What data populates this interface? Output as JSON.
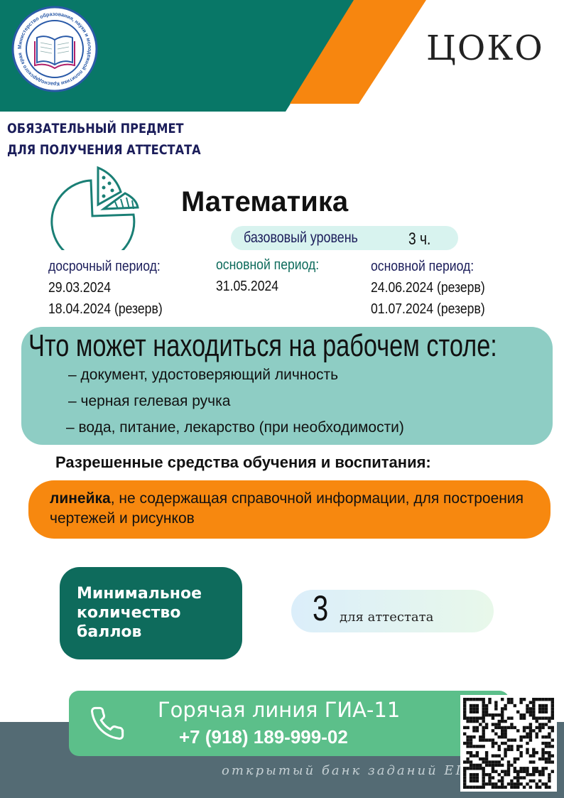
{
  "header": {
    "ministry_logo_text": "Министерство образования, науки и молодежной политики Краснодарского края",
    "tsko_logo_text": "ЦОКО",
    "colors": {
      "green": "#087767",
      "orange": "#f7860f"
    }
  },
  "heading": {
    "line1": "ОБЯЗАТЕЛЬНЫЙ ПРЕДМЕТ",
    "line2": "ДЛЯ ПОЛУЧЕНИЯ АТТЕСТАТА"
  },
  "subject": {
    "title": "Математика",
    "level": "базововый  уровень",
    "duration": "3 ч.",
    "icon": "pie-chart-icon"
  },
  "periods": [
    {
      "label": "досрочный период:",
      "dates": [
        "29.03.2024",
        "18.04.2024 (резерв)"
      ]
    },
    {
      "label": "основной период:",
      "dates": [
        "31.05.2024"
      ]
    },
    {
      "label": "основной период:",
      "dates": [
        "24.06.2024 (резерв)",
        "01.07.2024 (резерв)"
      ]
    }
  ],
  "desk": {
    "title": "Что может находиться на рабочем столе:",
    "items": [
      "– документ, удостоверяющий личность",
      "– черная гелевая ручка",
      "– вода, питание, лекарство (при необходимости)"
    ]
  },
  "allowed": {
    "title": "Разрешенные  средства обучения и воспитания:",
    "bold": "линейка",
    "rest": ", не содержащая справочной информации, для построения чертежей и рисунков"
  },
  "minimum": {
    "label_lines": [
      "Минимальное",
      "количество",
      "баллов"
    ],
    "score": "3",
    "score_label": "для аттестата"
  },
  "hotline": {
    "title": "Горячая линия ГИА-11",
    "phone": "+7 (918)  189-999-02",
    "icon": "phone-icon"
  },
  "footer": {
    "bank_text": "открытый банк заданий ЕГЭ",
    "qr": "qr-code"
  }
}
